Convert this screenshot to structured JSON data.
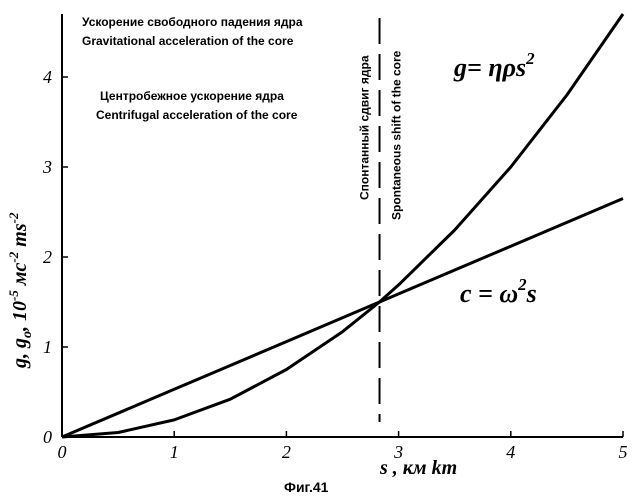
{
  "chart_data": {
    "type": "line",
    "xlabel": "s , км km",
    "ylabel_parts": [
      "g",
      ", ",
      "g",
      "o",
      ", 10",
      "-5",
      " мс",
      "-2",
      " ms",
      "-2"
    ],
    "xlim": [
      0,
      5
    ],
    "ylim": [
      0,
      4.7
    ],
    "x_ticks": [
      "0",
      "1",
      "2",
      "3",
      "4",
      "5"
    ],
    "y_ticks": [
      "0",
      "1",
      "2",
      "3",
      "4"
    ],
    "grid": false,
    "series": [
      {
        "name": "g = ηρs²",
        "name_parts": [
          "g",
          "= ηρs",
          "2"
        ],
        "x": [
          0,
          0.5,
          1,
          1.5,
          2,
          2.5,
          2.83,
          3,
          3.5,
          4,
          4.5,
          5
        ],
        "y": [
          0,
          0.05,
          0.19,
          0.42,
          0.75,
          1.17,
          1.5,
          1.69,
          2.3,
          3.0,
          3.8,
          4.7
        ],
        "style": "solid"
      },
      {
        "name": "c = ω²s",
        "name_parts": [
          "c",
          " = ω",
          "2",
          "s"
        ],
        "x": [
          0,
          1,
          2,
          2.83,
          3,
          4,
          5
        ],
        "y": [
          0,
          0.53,
          1.06,
          1.5,
          1.59,
          2.12,
          2.65
        ],
        "style": "solid"
      }
    ],
    "vline": {
      "x": 2.83,
      "style": "dashed",
      "labels": [
        "Спонтанный сдвиг ядра",
        "Spontaneous shift of the core"
      ]
    },
    "annotations": [
      "Ускорение свободного падения ядра",
      "Gravitational acceleration of the core",
      "Центробежное ускорение ядра",
      "Centrifugal acceleration of the core"
    ],
    "caption": "Фиг.41"
  }
}
